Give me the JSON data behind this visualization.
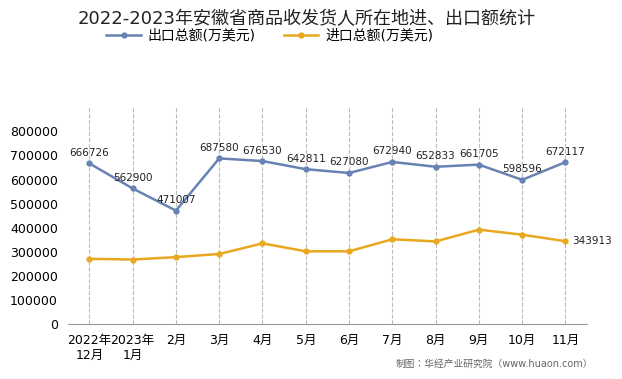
{
  "title": "2022-2023年安徽省商品收发货人所在地进、出口额统计",
  "categories": [
    "2022年\n12月",
    "2023年\n1月",
    "2月",
    "3月",
    "4月",
    "5月",
    "6月",
    "7月",
    "8月",
    "9月",
    "10月",
    "11月"
  ],
  "export_values": [
    666726,
    562900,
    471007,
    687580,
    676530,
    642811,
    627080,
    672940,
    652833,
    661705,
    598596,
    672117
  ],
  "import_values": [
    271000,
    268000,
    278000,
    291000,
    335000,
    302000,
    302000,
    352000,
    343000,
    392000,
    371000,
    343913
  ],
  "export_label": "出口总额(万美元)",
  "import_label": "进口总额(万美元)",
  "export_color": "#6882b4",
  "import_color": "#e8a820",
  "ylim": [
    0,
    900000
  ],
  "yticks": [
    0,
    100000,
    200000,
    300000,
    400000,
    500000,
    600000,
    700000,
    800000
  ],
  "title_fontsize": 13,
  "legend_fontsize": 10,
  "tick_fontsize": 9,
  "annotation_fontsize": 7.5,
  "footer": "制图：华经产业研究院（www.huaon.com）",
  "bg_color": "#ffffff",
  "grid_color": "#bbbbbb"
}
